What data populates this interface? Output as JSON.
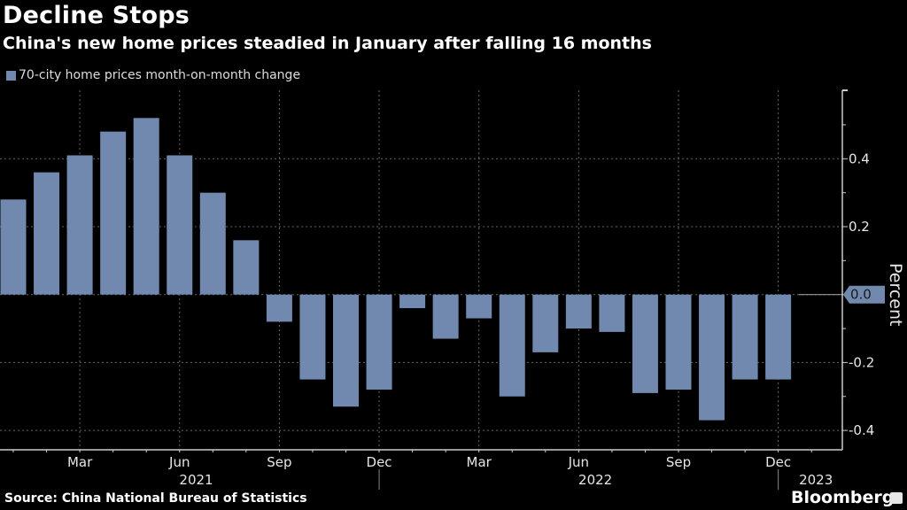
{
  "chart_data": {
    "type": "bar",
    "title": "Decline Stops",
    "subtitle": "China's new home prices steadied in January after falling 16 months",
    "legend": [
      "70-city home prices month-on-month change"
    ],
    "legend_position": "top-left",
    "ylabel": "Percent",
    "xlabel": "",
    "ylim": [
      -0.45,
      0.6
    ],
    "yticks": [
      0.4,
      0.2,
      0.0,
      -0.2,
      -0.4
    ],
    "ytick_labels": [
      "0.4",
      "0.2",
      "0.0",
      "-0.2",
      "-0.4"
    ],
    "y_axis_side": "right",
    "grid": true,
    "last_value_label": "0.0",
    "categories": [
      "Jan 2021",
      "Feb 2021",
      "Mar 2021",
      "Apr 2021",
      "May 2021",
      "Jun 2021",
      "Jul 2021",
      "Aug 2021",
      "Sep 2021",
      "Oct 2021",
      "Nov 2021",
      "Dec 2021",
      "Jan 2022",
      "Feb 2022",
      "Mar 2022",
      "Apr 2022",
      "May 2022",
      "Jun 2022",
      "Jul 2022",
      "Aug 2022",
      "Sep 2022",
      "Oct 2022",
      "Nov 2022",
      "Dec 2022",
      "Jan 2023"
    ],
    "series": [
      {
        "name": "70-city home prices month-on-month change",
        "color": "#7189ae",
        "values": [
          0.28,
          0.36,
          0.41,
          0.48,
          0.52,
          0.41,
          0.3,
          0.16,
          -0.08,
          -0.25,
          -0.33,
          -0.28,
          -0.04,
          -0.13,
          -0.07,
          -0.3,
          -0.17,
          -0.1,
          -0.11,
          -0.29,
          -0.28,
          -0.37,
          -0.25,
          -0.25,
          0.0
        ]
      }
    ],
    "xtick_labels": [
      {
        "label": "Mar",
        "index": 2
      },
      {
        "label": "Jun",
        "index": 5
      },
      {
        "label": "Sep",
        "index": 8
      },
      {
        "label": "Dec",
        "index": 11
      },
      {
        "label": "Mar",
        "index": 14
      },
      {
        "label": "Jun",
        "index": 17
      },
      {
        "label": "Sep",
        "index": 20
      },
      {
        "label": "Dec",
        "index": 23
      }
    ],
    "year_labels": [
      {
        "label": "2021",
        "center_index": 5.5
      },
      {
        "label": "2022",
        "center_index": 17.5
      },
      {
        "label": "2023",
        "center_index": 24
      }
    ],
    "year_separators_after_index": [
      11,
      23
    ]
  },
  "source": "Source: China National Bureau of Statistics",
  "brand": "Bloomberg"
}
